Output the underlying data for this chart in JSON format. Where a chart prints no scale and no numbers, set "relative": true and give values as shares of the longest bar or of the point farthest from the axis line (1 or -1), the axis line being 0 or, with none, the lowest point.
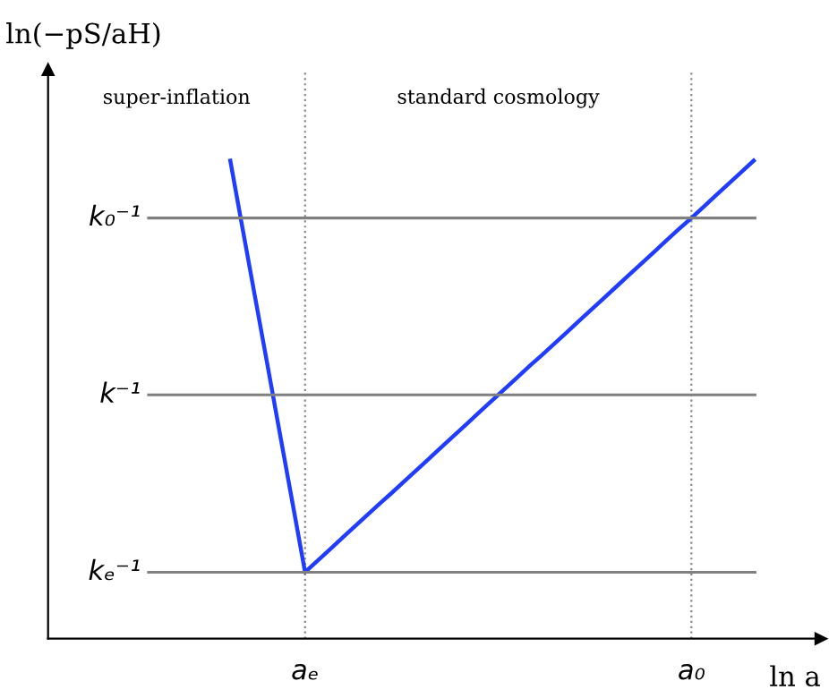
{
  "chart_data": {
    "type": "line",
    "relative": true,
    "xlabel": "ln a",
    "ylabel": "ln(−pS/aH)",
    "categories": [
      null,
      null,
      null,
      null,
      null,
      null,
      "aₑ",
      null,
      null,
      null,
      null,
      null,
      null,
      null,
      null,
      null,
      null,
      null,
      null,
      null,
      null,
      null,
      null,
      null,
      null,
      null,
      null,
      null,
      null,
      null,
      null,
      null,
      null,
      null,
      null,
      null,
      null,
      "a₀",
      null,
      null,
      null,
      null,
      null
    ],
    "series": [
      {
        "color": "#1f3cff",
        "values": [
          1.0,
          0.856,
          0.713,
          0.57,
          0.426,
          0.283,
          0.139,
          0.163,
          0.187,
          0.211,
          0.235,
          0.259,
          0.283,
          0.306,
          0.33,
          0.354,
          0.378,
          0.402,
          0.426,
          0.45,
          0.474,
          0.498,
          0.522,
          0.546,
          0.57,
          0.593,
          0.617,
          0.641,
          0.665,
          0.689,
          0.713,
          0.737,
          0.761,
          0.785,
          0.809,
          0.833,
          0.857,
          0.88,
          0.904,
          0.928,
          0.952,
          0.976,
          1.0
        ]
      }
    ],
    "grid": "x",
    "ref_lines": [
      {
        "axis": "y",
        "value": 0.88,
        "label": "k₀⁻¹",
        "color": "#808080"
      },
      {
        "axis": "y",
        "value": 0.51,
        "label": "k⁻¹",
        "color": "#808080"
      },
      {
        "axis": "y",
        "value": 0.139,
        "label": "kₑ⁻¹",
        "color": "#808080"
      }
    ],
    "annotations": [
      "super-inflation",
      "standard cosmology"
    ]
  }
}
